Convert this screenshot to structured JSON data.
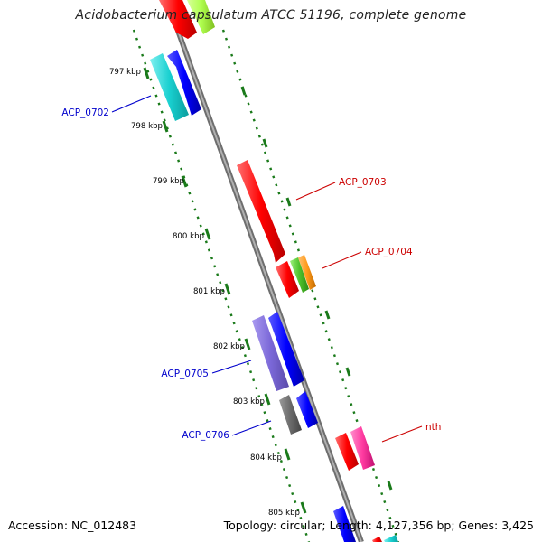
{
  "title": "Acidobacterium capsulatum ATCC 51196, complete genome",
  "accession": "Accession: NC_012483",
  "summary": "Topology: circular; Length: 4,127,356 bp; Genes: 3,425",
  "ticks": [
    "797 kbp",
    "798 kbp",
    "799 kbp",
    "800 kbp",
    "801 kbp",
    "802 kbp",
    "803 kbp",
    "804 kbp",
    "805 kbp"
  ],
  "gene_labels": {
    "acp0702": "ACP_0702",
    "acp0703": "ACP_0703",
    "acp0704": "ACP_0704",
    "acp0705": "ACP_0705",
    "acp0706": "ACP_0706",
    "nth": "nth"
  },
  "colors": {
    "backbone": "#8a8a8a",
    "dotted_track": "#1a7a1a",
    "forward_label": "#0000cc",
    "reverse_label": "#cc0000"
  }
}
